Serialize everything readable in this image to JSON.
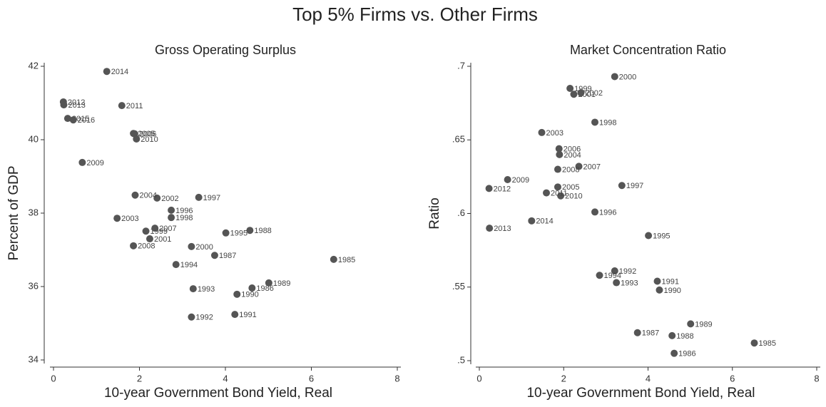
{
  "title": "Top 5% Firms vs. Other Firms",
  "chart_data": [
    {
      "type": "scatter",
      "title": "Gross Operating Surplus",
      "x_label": "10-year Government Bond Yield, Real",
      "y_label": "Percent of GDP",
      "color": "#555555",
      "labels": [
        "1985",
        "1986",
        "1987",
        "1988",
        "1989",
        "1990",
        "1991",
        "1992",
        "1993",
        "1994",
        "1995",
        "1996",
        "1997",
        "1998",
        "1999",
        "2000",
        "2001",
        "2002",
        "2003",
        "2004",
        "2005",
        "2006",
        "2007",
        "2008",
        "2009",
        "2010",
        "2011",
        "2012",
        "2013",
        "2014",
        "2015",
        "2016"
      ],
      "x": [
        6.52,
        4.62,
        3.75,
        4.57,
        5.01,
        4.27,
        4.22,
        3.21,
        3.25,
        2.85,
        4.01,
        2.74,
        3.38,
        2.74,
        2.15,
        3.21,
        2.24,
        2.41,
        1.48,
        1.9,
        1.86,
        1.89,
        2.36,
        1.86,
        0.67,
        1.93,
        1.59,
        0.23,
        0.24,
        1.24,
        0.33,
        0.46
      ],
      "values": [
        36.74,
        35.96,
        36.85,
        37.53,
        36.1,
        35.79,
        35.24,
        35.17,
        35.94,
        36.6,
        37.46,
        38.08,
        38.43,
        37.88,
        37.51,
        37.09,
        37.3,
        38.41,
        37.86,
        38.49,
        40.17,
        40.16,
        37.59,
        37.11,
        39.38,
        40.02,
        40.93,
        41.03,
        40.95,
        41.86,
        40.58,
        40.54
      ],
      "xlim": [
        0,
        8
      ],
      "xticks": [
        0,
        2,
        4,
        6,
        8
      ],
      "ylim": [
        34,
        42
      ],
      "yticks": [
        34,
        36,
        38,
        40,
        42
      ]
    },
    {
      "type": "scatter",
      "title": "Market Concentration Ratio",
      "x_label": "10-year Government Bond Yield, Real",
      "y_label": "Ratio",
      "color": "#555555",
      "labels": [
        "1985",
        "1986",
        "1987",
        "1988",
        "1989",
        "1990",
        "1991",
        "1992",
        "1993",
        "1994",
        "1995",
        "1996",
        "1997",
        "1998",
        "1999",
        "2000",
        "2001",
        "2002",
        "2003",
        "2004",
        "2005",
        "2006",
        "2007",
        "2008",
        "2009",
        "2010",
        "2011",
        "2012",
        "2013",
        "2014"
      ],
      "x": [
        6.52,
        4.62,
        3.75,
        4.57,
        5.01,
        4.27,
        4.22,
        3.21,
        3.25,
        2.85,
        4.01,
        2.74,
        3.38,
        2.74,
        2.15,
        3.21,
        2.24,
        2.41,
        1.48,
        1.9,
        1.86,
        1.89,
        2.36,
        1.86,
        0.67,
        1.93,
        1.59,
        0.23,
        0.24,
        1.24
      ],
      "values": [
        0.512,
        0.505,
        0.519,
        0.517,
        0.525,
        0.548,
        0.554,
        0.561,
        0.553,
        0.558,
        0.585,
        0.601,
        0.619,
        0.662,
        0.685,
        0.693,
        0.681,
        0.682,
        0.655,
        0.64,
        0.618,
        0.644,
        0.632,
        0.63,
        0.623,
        0.612,
        0.614,
        0.617,
        0.59,
        0.595
      ],
      "xlim": [
        0,
        8
      ],
      "xticks": [
        0,
        2,
        4,
        6,
        8
      ],
      "ylim": [
        0.5,
        0.7
      ],
      "yticks": [
        {
          "value": 0.5,
          "label": ".5"
        },
        {
          "value": 0.55,
          "label": ".55"
        },
        {
          "value": 0.6,
          "label": ".6"
        },
        {
          "value": 0.65,
          "label": ".65"
        },
        {
          "value": 0.7,
          "label": ".7"
        }
      ]
    }
  ]
}
